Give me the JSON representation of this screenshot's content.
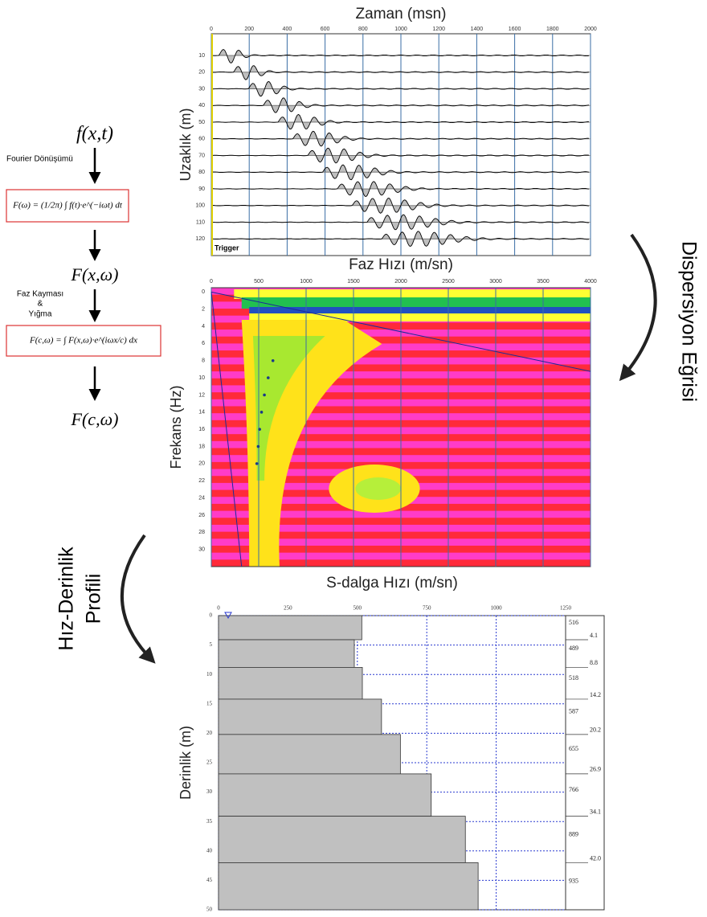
{
  "flow": {
    "start": "f(x,t)",
    "step1_label": "Fourier Dönüşümü",
    "formula1": "F(ω) = (1/2π) ∫ f(t)·e^(−iωt) dt",
    "mid": "F(x,ω)",
    "step2_label": [
      "Faz Kayması",
      "&",
      "Yığma"
    ],
    "formula2": "F(c,ω) = ∫ F(x,ω)·e^(iωx/c) dx",
    "end": "F(c,ω)"
  },
  "arrow_labels": {
    "dispersion": "Dispersiyon Eğrisi",
    "profile": [
      "Hız-Derinlik",
      "Profili"
    ]
  },
  "chart_data": [
    {
      "type": "seismogram",
      "title": "Zaman (msn)",
      "y_label": "Uzaklık (m)",
      "xlim": [
        0,
        2000
      ],
      "xticks": [
        0,
        200,
        400,
        600,
        800,
        1000,
        1200,
        1400,
        1600,
        1800,
        2000
      ],
      "ylim": [
        -3,
        130
      ],
      "yticks": [
        10,
        20,
        30,
        40,
        50,
        60,
        70,
        80,
        90,
        100,
        110,
        120
      ],
      "annotation": "Trigger"
    },
    {
      "type": "dispersion",
      "title": "Faz Hızı (m/sn)",
      "y_label": "Frekans (Hz)",
      "xlim": [
        0,
        4000
      ],
      "xticks": [
        0,
        500,
        1000,
        1500,
        2000,
        2500,
        3000,
        3500,
        4000
      ],
      "ylim": [
        -0.5,
        32
      ],
      "yticks": [
        0,
        2,
        4,
        6,
        8,
        10,
        12,
        14,
        16,
        18,
        20,
        22,
        24,
        26,
        28,
        30
      ],
      "x": [
        650,
        600,
        560,
        530,
        510,
        495,
        480
      ],
      "values": [
        8,
        10,
        12,
        14,
        16,
        18,
        20
      ],
      "color": "#1a3a8a"
    },
    {
      "type": "step",
      "title": "S-dalga Hızı (m/sn)",
      "y_label": "Derinlik (m)",
      "xlim": [
        0,
        1250
      ],
      "xticks": [
        0,
        250,
        500,
        750,
        1000,
        1250
      ],
      "ylim": [
        0,
        50
      ],
      "yticks": [
        0,
        5,
        10,
        15,
        20,
        25,
        30,
        35,
        40,
        45,
        50
      ],
      "values": [
        516,
        489,
        518,
        587,
        655,
        766,
        889,
        935
      ],
      "layer_bottoms": [
        4.1,
        8.8,
        14.2,
        20.2,
        26.9,
        34.1,
        {
          "value": 42,
          "label": "42.0"
        }
      ],
      "color": "#c0c0c0"
    }
  ]
}
